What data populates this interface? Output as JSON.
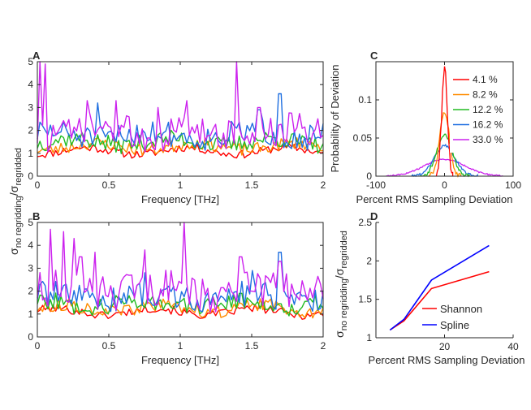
{
  "figure": {
    "panel_letters": [
      "A",
      "B",
      "C",
      "D"
    ],
    "shared_ylabel_ab": {
      "main": "σ",
      "sub1": "no regridding",
      "slash": "/σ",
      "sub2": "regridded"
    }
  },
  "chart_data": [
    {
      "id": "A",
      "type": "line",
      "xlabel": "Frequency [THz]",
      "xlim": [
        0,
        2
      ],
      "ylim": [
        0,
        5
      ],
      "xticks": [
        0,
        0.5,
        1,
        1.5,
        2
      ],
      "xtick_labels": [
        "0",
        "0.5",
        "1",
        "1.5",
        "2"
      ],
      "yticks": [
        0,
        1,
        2,
        3,
        4,
        5
      ],
      "ytick_labels": [
        "0",
        "1",
        "2",
        "3",
        "4",
        "5"
      ],
      "series": [
        {
          "label_ref": "4.1 %",
          "color": "#ff0000",
          "base": 1.1,
          "amp": 0.18,
          "seed": 11,
          "n": 110,
          "spikes": []
        },
        {
          "label_ref": "8.2 %",
          "color": "#ff8c00",
          "base": 1.3,
          "amp": 0.28,
          "seed": 23,
          "n": 110,
          "spikes": []
        },
        {
          "label_ref": "12.2 %",
          "color": "#22bb22",
          "base": 1.5,
          "amp": 0.38,
          "seed": 37,
          "n": 110,
          "spikes": []
        },
        {
          "label_ref": "16.2 %",
          "color": "#1f6fe0",
          "base": 1.8,
          "amp": 0.55,
          "seed": 51,
          "n": 110,
          "spikes": [
            [
              1.7,
              3.6
            ],
            [
              0.42,
              3.2
            ],
            [
              1.55,
              2.9
            ]
          ]
        },
        {
          "label_ref": "33.0 %",
          "color": "#cc22ee",
          "base": 1.9,
          "amp": 0.75,
          "seed": 73,
          "n": 110,
          "spikes": [
            [
              0.02,
              5.0
            ],
            [
              0.05,
              4.9
            ],
            [
              1.4,
              5.0
            ],
            [
              0.35,
              3.3
            ],
            [
              0.55,
              3.3
            ],
            [
              1.05,
              3.3
            ],
            [
              1.55,
              3.0
            ],
            [
              0.85,
              3.0
            ]
          ]
        }
      ]
    },
    {
      "id": "B",
      "type": "line",
      "xlabel": "Frequency [THz]",
      "xlim": [
        0,
        2
      ],
      "ylim": [
        0,
        5
      ],
      "xticks": [
        0,
        0.5,
        1,
        1.5,
        2
      ],
      "xtick_labels": [
        "0",
        "0.5",
        "1",
        "1.5",
        "2"
      ],
      "yticks": [
        0,
        1,
        2,
        3,
        4,
        5
      ],
      "ytick_labels": [
        "0",
        "1",
        "2",
        "3",
        "4",
        "5"
      ],
      "series": [
        {
          "label_ref": "4.1 %",
          "color": "#ff0000",
          "base": 1.1,
          "amp": 0.18,
          "seed": 101,
          "n": 110,
          "spikes": []
        },
        {
          "label_ref": "8.2 %",
          "color": "#ff8c00",
          "base": 1.25,
          "amp": 0.28,
          "seed": 113,
          "n": 110,
          "spikes": []
        },
        {
          "label_ref": "12.2 %",
          "color": "#22bb22",
          "base": 1.45,
          "amp": 0.38,
          "seed": 127,
          "n": 110,
          "spikes": []
        },
        {
          "label_ref": "16.2 %",
          "color": "#1f6fe0",
          "base": 1.75,
          "amp": 0.55,
          "seed": 139,
          "n": 110,
          "spikes": [
            [
              1.7,
              3.7
            ],
            [
              1.5,
              2.9
            ],
            [
              0.75,
              2.8
            ]
          ]
        },
        {
          "label_ref": "33.0 %",
          "color": "#cc22ee",
          "base": 2.0,
          "amp": 0.8,
          "seed": 151,
          "n": 110,
          "spikes": [
            [
              1.03,
              5.0
            ],
            [
              0.09,
              4.7
            ],
            [
              0.18,
              4.6
            ],
            [
              0.26,
              4.3
            ],
            [
              0.4,
              3.7
            ],
            [
              0.3,
              3.5
            ],
            [
              0.75,
              3.8
            ],
            [
              1.42,
              3.5
            ],
            [
              1.7,
              3.3
            ]
          ]
        }
      ]
    },
    {
      "id": "C",
      "type": "line",
      "xlabel": "Percent RMS Sampling Deviation",
      "ylabel": "Probability of Deviation",
      "xlim": [
        -100,
        100
      ],
      "ylim": [
        0,
        0.15
      ],
      "xticks": [
        -100,
        0,
        100
      ],
      "xtick_labels": [
        "-100",
        "0",
        "100"
      ],
      "yticks": [
        0,
        0.05,
        0.1
      ],
      "ytick_labels": [
        "0",
        "0.05",
        "0.1"
      ],
      "legend_position": "top-right",
      "series": [
        {
          "name": "4.1 %",
          "color": "#ff0000",
          "peak": 0.14,
          "sigma": 4.1,
          "extent": 12
        },
        {
          "name": "8.2 %",
          "color": "#ff8c00",
          "peak": 0.085,
          "sigma": 7,
          "extent": 24
        },
        {
          "name": "12.2 %",
          "color": "#22bb22",
          "peak": 0.055,
          "sigma": 11,
          "extent": 36
        },
        {
          "name": "16.2 %",
          "color": "#1f6fe0",
          "peak": 0.04,
          "sigma": 15,
          "extent": 48
        },
        {
          "name": "33.0 %",
          "color": "#cc22ee",
          "peak": 0.022,
          "sigma": 30,
          "extent": 85
        }
      ]
    },
    {
      "id": "D",
      "type": "line",
      "xlabel": "Percent RMS Sampling Deviation",
      "xlim": [
        0,
        40
      ],
      "ylim": [
        1,
        2.5
      ],
      "xticks": [
        20,
        40
      ],
      "xtick_labels": [
        "20",
        "40"
      ],
      "yticks": [
        1,
        1.5,
        2,
        2.5
      ],
      "ytick_labels": [
        "1",
        "1.5",
        "2",
        "2.5"
      ],
      "legend_position": "bottom-right",
      "ylabel_parts": {
        "main": "σ",
        "sub1": "no regridding",
        "slash": "/σ",
        "sub2": "regridded"
      },
      "series": [
        {
          "name": "Shannon",
          "color": "#ff0000",
          "x": [
            4.1,
            8.2,
            16.2,
            33.0
          ],
          "y": [
            1.1,
            1.22,
            1.64,
            1.86
          ]
        },
        {
          "name": "Spline",
          "color": "#0000ff",
          "x": [
            4.1,
            8.2,
            16.2,
            33.0
          ],
          "y": [
            1.1,
            1.24,
            1.75,
            2.2
          ]
        }
      ]
    }
  ]
}
